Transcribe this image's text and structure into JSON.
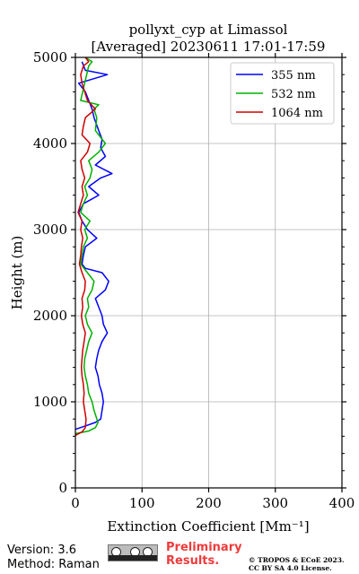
{
  "chart_data": {
    "type": "line",
    "title": "pollyxt_cyp at Limassol",
    "subtitle": "[Averaged] 20230611 17:01-17:59",
    "xlabel": "Extinction Coefficient [Mm⁻¹]",
    "ylabel": "Height (m)",
    "xlim": [
      0,
      400
    ],
    "ylim": [
      0,
      5000
    ],
    "xticks": [
      "0",
      "100",
      "200",
      "300",
      "400"
    ],
    "yticks": [
      "0",
      "1000",
      "2000",
      "3000",
      "4000",
      "5000"
    ],
    "grid": true,
    "legend_position": "top-right",
    "series": [
      {
        "name": "355 nm",
        "color": "#0000ff",
        "points": [
          [
            0,
            680
          ],
          [
            15,
            720
          ],
          [
            30,
            760
          ],
          [
            38,
            800
          ],
          [
            40,
            900
          ],
          [
            42,
            1000
          ],
          [
            40,
            1100
          ],
          [
            36,
            1200
          ],
          [
            34,
            1300
          ],
          [
            30,
            1400
          ],
          [
            32,
            1500
          ],
          [
            35,
            1600
          ],
          [
            40,
            1700
          ],
          [
            48,
            1800
          ],
          [
            42,
            1900
          ],
          [
            40,
            2000
          ],
          [
            35,
            2100
          ],
          [
            30,
            2200
          ],
          [
            45,
            2300
          ],
          [
            50,
            2400
          ],
          [
            40,
            2500
          ],
          [
            15,
            2550
          ],
          [
            10,
            2600
          ],
          [
            12,
            2700
          ],
          [
            15,
            2800
          ],
          [
            32,
            2900
          ],
          [
            18,
            3000
          ],
          [
            10,
            3100
          ],
          [
            5,
            3200
          ],
          [
            12,
            3300
          ],
          [
            35,
            3400
          ],
          [
            20,
            3500
          ],
          [
            38,
            3600
          ],
          [
            55,
            3650
          ],
          [
            30,
            3750
          ],
          [
            45,
            3850
          ],
          [
            38,
            3950
          ],
          [
            40,
            4050
          ],
          [
            35,
            4150
          ],
          [
            28,
            4300
          ],
          [
            25,
            4400
          ],
          [
            15,
            4600
          ],
          [
            10,
            4650
          ],
          [
            5,
            4700
          ],
          [
            48,
            4800
          ],
          [
            15,
            4850
          ],
          [
            10,
            4950
          ]
        ]
      },
      {
        "name": "532 nm",
        "color": "#00b000",
        "points": [
          [
            0,
            630
          ],
          [
            20,
            660
          ],
          [
            30,
            700
          ],
          [
            34,
            760
          ],
          [
            28,
            900
          ],
          [
            25,
            1000
          ],
          [
            20,
            1100
          ],
          [
            18,
            1200
          ],
          [
            15,
            1300
          ],
          [
            13,
            1400
          ],
          [
            14,
            1500
          ],
          [
            17,
            1600
          ],
          [
            20,
            1700
          ],
          [
            25,
            1800
          ],
          [
            18,
            1900
          ],
          [
            15,
            2000
          ],
          [
            20,
            2100
          ],
          [
            18,
            2200
          ],
          [
            25,
            2300
          ],
          [
            28,
            2400
          ],
          [
            18,
            2500
          ],
          [
            8,
            2600
          ],
          [
            10,
            2700
          ],
          [
            12,
            2800
          ],
          [
            18,
            2900
          ],
          [
            14,
            3000
          ],
          [
            22,
            3100
          ],
          [
            8,
            3200
          ],
          [
            12,
            3300
          ],
          [
            18,
            3400
          ],
          [
            14,
            3500
          ],
          [
            22,
            3600
          ],
          [
            25,
            3700
          ],
          [
            20,
            3800
          ],
          [
            35,
            3900
          ],
          [
            45,
            4000
          ],
          [
            30,
            4150
          ],
          [
            32,
            4300
          ],
          [
            28,
            4400
          ],
          [
            35,
            4450
          ],
          [
            8,
            4500
          ],
          [
            20,
            4900
          ],
          [
            25,
            4950
          ],
          [
            15,
            5000
          ]
        ]
      },
      {
        "name": "1064 nm",
        "color": "#cc0000",
        "points": [
          [
            0,
            610
          ],
          [
            10,
            650
          ],
          [
            15,
            700
          ],
          [
            16,
            800
          ],
          [
            14,
            900
          ],
          [
            12,
            1000
          ],
          [
            13,
            1100
          ],
          [
            12,
            1200
          ],
          [
            10,
            1300
          ],
          [
            9,
            1400
          ],
          [
            10,
            1500
          ],
          [
            11,
            1600
          ],
          [
            13,
            1700
          ],
          [
            15,
            1800
          ],
          [
            11,
            1900
          ],
          [
            9,
            2000
          ],
          [
            11,
            2100
          ],
          [
            10,
            2200
          ],
          [
            14,
            2300
          ],
          [
            15,
            2400
          ],
          [
            10,
            2500
          ],
          [
            6,
            2600
          ],
          [
            8,
            2700
          ],
          [
            9,
            2800
          ],
          [
            11,
            2900
          ],
          [
            8,
            3000
          ],
          [
            10,
            3100
          ],
          [
            4,
            3200
          ],
          [
            8,
            3300
          ],
          [
            12,
            3400
          ],
          [
            10,
            3500
          ],
          [
            14,
            3600
          ],
          [
            10,
            3700
          ],
          [
            8,
            3800
          ],
          [
            18,
            3900
          ],
          [
            22,
            4000
          ],
          [
            10,
            4100
          ],
          [
            12,
            4200
          ],
          [
            15,
            4300
          ],
          [
            30,
            4400
          ],
          [
            18,
            4500
          ],
          [
            10,
            4700
          ],
          [
            8,
            4800
          ],
          [
            12,
            4900
          ],
          [
            20,
            4950
          ],
          [
            15,
            5000
          ]
        ]
      }
    ]
  },
  "footer": {
    "version": "Version: 3.6",
    "method": "Method: Raman",
    "license_badge": "cc-by-sa-badge",
    "prelim_line1": "Preliminary",
    "prelim_line2": "Results.",
    "copyright_line1": "© TROPOS & ECoE 2023.",
    "copyright_line2": "CC BY SA 4.0 License."
  }
}
